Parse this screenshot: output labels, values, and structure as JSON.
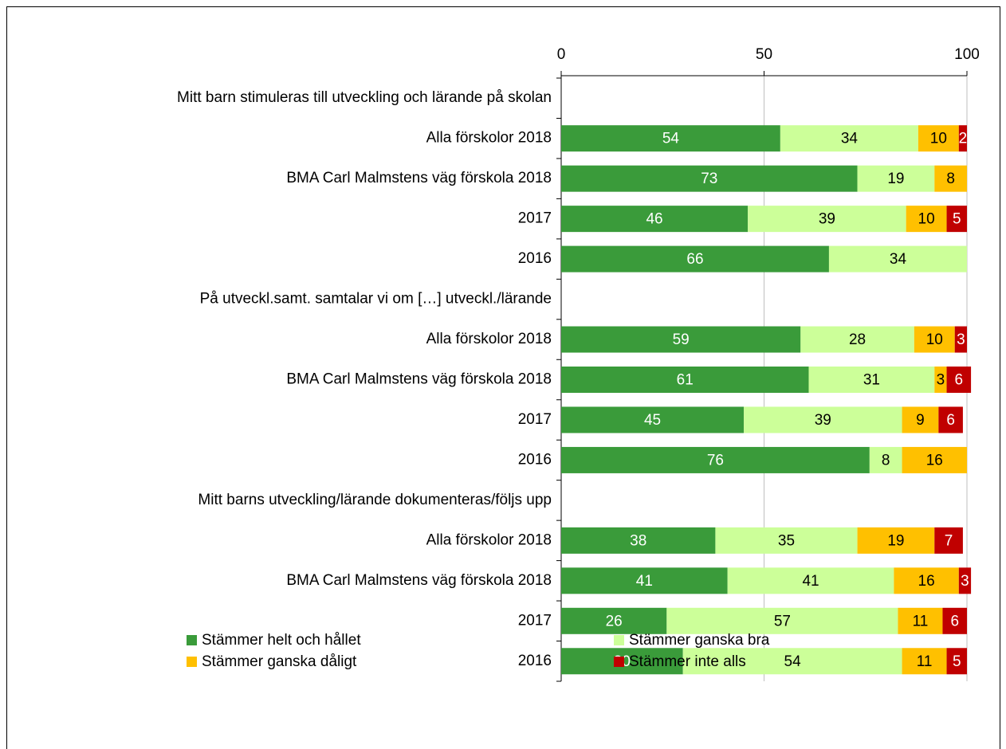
{
  "chart_data": {
    "type": "stacked_barh",
    "categories": [
      "Mitt barn stimuleras till utveckling och lärande på skolan",
      "Alla förskolor 2018",
      "BMA Carl Malmstens väg förskola 2018",
      "2017",
      "2016",
      "På utveckl.samt. samtalar vi om […] utveckl./lärande",
      "Alla förskolor 2018",
      "BMA Carl Malmstens väg förskola 2018",
      "2017",
      "2016",
      "Mitt barns utveckling/lärande dokumenteras/följs upp",
      "Alla förskolor 2018",
      "BMA Carl Malmstens väg förskola 2018",
      "2017",
      "2016"
    ],
    "series": [
      {
        "name": "Stämmer helt och hållet",
        "color": "#3a9b3a",
        "label_color": "#ffffff",
        "values": [
          null,
          54,
          73,
          46,
          66,
          null,
          59,
          61,
          45,
          76,
          null,
          38,
          41,
          26,
          30
        ]
      },
      {
        "name": "Stämmer ganska bra",
        "color": "#ccff99",
        "label_color": "#000000",
        "values": [
          null,
          34,
          19,
          39,
          34,
          null,
          28,
          31,
          39,
          8,
          null,
          35,
          41,
          57,
          54
        ]
      },
      {
        "name": "Stämmer ganska dåligt",
        "color": "#ffc000",
        "label_color": "#000000",
        "values": [
          null,
          10,
          8,
          10,
          null,
          null,
          10,
          3,
          9,
          16,
          null,
          19,
          16,
          11,
          11
        ]
      },
      {
        "name": "Stämmer inte alls",
        "color": "#c00000",
        "label_color": "#ffffff",
        "values": [
          null,
          2,
          null,
          5,
          null,
          null,
          3,
          6,
          6,
          null,
          null,
          7,
          3,
          6,
          5
        ]
      }
    ],
    "xlim": [
      0,
      100
    ],
    "xticks": [
      0,
      50,
      100
    ],
    "grid": true,
    "legend": "bottom"
  }
}
